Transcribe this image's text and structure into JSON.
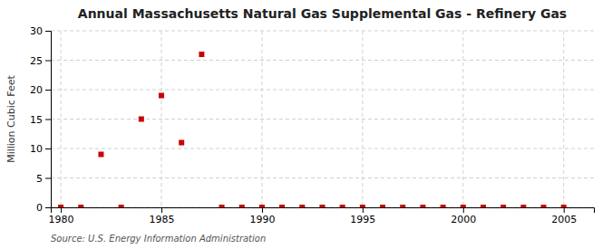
{
  "chart_data": {
    "type": "scatter",
    "title": "Annual Massachusetts Natural Gas Supplemental Gas - Refinery Gas",
    "ylabel": "Million Cubic Feet",
    "annotations": [
      "Source: U.S. Energy Information Administration"
    ],
    "x": [
      1980,
      1981,
      1982,
      1983,
      1984,
      1985,
      1986,
      1987,
      1988,
      1989,
      1990,
      1991,
      1992,
      1993,
      1994,
      1995,
      1996,
      1997,
      1998,
      1999,
      2000,
      2001,
      2002,
      2003,
      2004,
      2005
    ],
    "values": [
      0,
      0,
      9,
      0,
      15,
      19,
      11,
      26,
      0,
      0,
      0,
      0,
      0,
      0,
      0,
      0,
      0,
      0,
      0,
      0,
      0,
      0,
      0,
      0,
      0,
      0
    ],
    "color": "#cc0000",
    "marker": "square",
    "xlim": [
      1979.5,
      2006.5
    ],
    "ylim": [
      0,
      30
    ],
    "xticks": [
      1980,
      1985,
      1990,
      1995,
      2000,
      2005
    ],
    "yticks": [
      0,
      5,
      10,
      15,
      20,
      25,
      30
    ],
    "grid": true
  }
}
